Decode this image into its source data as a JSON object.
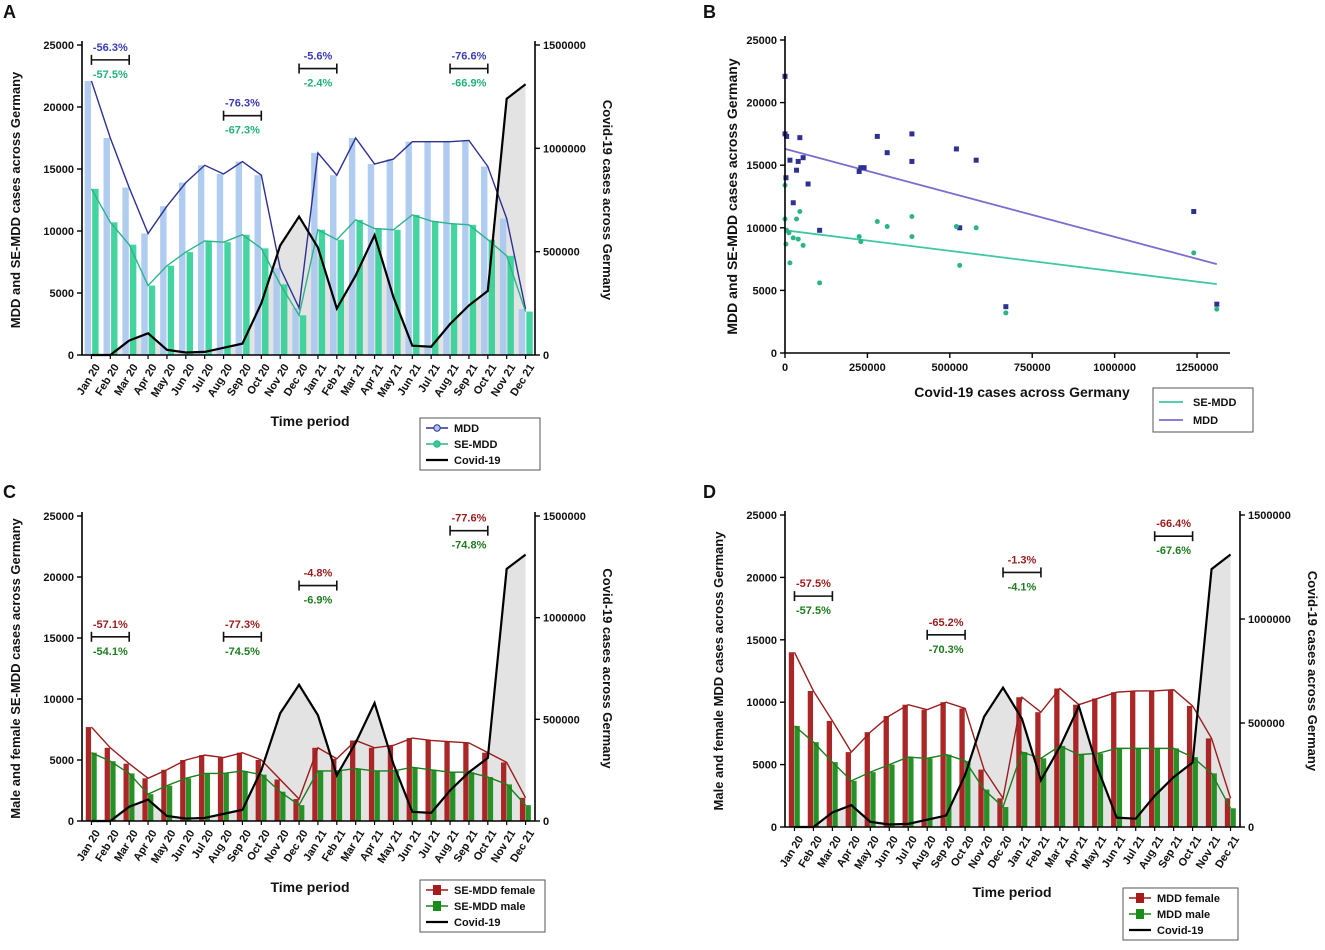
{
  "months": [
    "Jan 20",
    "Feb 20",
    "Mar 20",
    "Apr 20",
    "May 20",
    "Jun 20",
    "Jul 20",
    "Aug 20",
    "Sep 20",
    "Oct 20",
    "Nov 20",
    "Dec 20",
    "Jan 21",
    "Feb 21",
    "Mar 21",
    "Apr 21",
    "May 21",
    "Jun 21",
    "Jul 21",
    "Aug 21",
    "Sep 21",
    "Oct 21",
    "Nov 21",
    "Dec 21"
  ],
  "chart_data": [
    {
      "id": "A",
      "letter": "A",
      "type": "bar+line",
      "ylabel": "MDD and SE-MDD cases across Germany",
      "y2label": "Covid-19 cases across Germany",
      "xlabel": "Time period",
      "ylim": [
        0,
        25000
      ],
      "y2lim": [
        0,
        1500000
      ],
      "yticks": [
        "0",
        "5000",
        "10000",
        "15000",
        "20000",
        "25000"
      ],
      "y2ticks": [
        "0",
        "500000",
        "1000000",
        "1500000"
      ],
      "series": [
        {
          "name": "MDD",
          "color": "#2e3192",
          "bar": "#a9c7ef",
          "values": [
            22100,
            17500,
            13500,
            9800,
            12000,
            13900,
            15300,
            14600,
            15600,
            14500,
            7000,
            3800,
            16300,
            14500,
            17500,
            15400,
            15800,
            17200,
            17200,
            17200,
            17300,
            15200,
            11000,
            3700
          ]
        },
        {
          "name": "SE-MDD",
          "color": "#2bb48a",
          "bar": "#2fcf96",
          "values": [
            13400,
            10700,
            8900,
            5600,
            7200,
            8300,
            9200,
            9100,
            9700,
            8600,
            5700,
            3200,
            10100,
            9300,
            10900,
            10200,
            10100,
            11300,
            10800,
            10600,
            10500,
            9300,
            8000,
            3500
          ]
        }
      ],
      "covid": [
        0,
        0,
        70000,
        105000,
        25000,
        12000,
        15000,
        35000,
        55000,
        250000,
        530000,
        670000,
        520000,
        225000,
        385000,
        580000,
        280000,
        45000,
        40000,
        150000,
        240000,
        310000,
        1240000,
        1310000
      ],
      "brackets": [
        {
          "from": 0,
          "to": 2,
          "level": 23800,
          "top": "-56.3%",
          "bottom": "-57.5%"
        },
        {
          "from": 7,
          "to": 9,
          "level": 19300,
          "top": "-76.3%",
          "bottom": "-67.3%"
        },
        {
          "from": 11,
          "to": 13,
          "level": 23100,
          "top": "-5.6%",
          "bottom": "-2.4%"
        },
        {
          "from": 19,
          "to": 21,
          "level": 23100,
          "top": "-76.6%",
          "bottom": "-66.9%"
        }
      ],
      "legend": [
        "MDD",
        "SE-MDD",
        "Covid-19"
      ]
    },
    {
      "id": "B",
      "letter": "B",
      "type": "scatter",
      "ylabel": "MDD and SE-MDD cases across Germany",
      "xlabel": "Covid-19 cases across Germany",
      "xlim": [
        0,
        1350000
      ],
      "ylim": [
        0,
        25000
      ],
      "xticks": [
        0,
        250000,
        500000,
        750000,
        1000000,
        1250000
      ],
      "xtick_labels": [
        "0",
        "250000",
        "500000",
        "750000",
        "1000000",
        "1250000"
      ],
      "yticks": [
        "0",
        "5000",
        "10000",
        "15000",
        "20000",
        "25000"
      ],
      "series": [
        {
          "name": "MDD",
          "color": "#2e3192",
          "line": "#7a6fcf",
          "x": [
            0,
            0,
            3000,
            5000,
            15000,
            25000,
            35000,
            40000,
            45000,
            55000,
            70000,
            105000,
            225000,
            230000,
            240000,
            280000,
            310000,
            385000,
            385000,
            520000,
            530000,
            580000,
            670000,
            1240000,
            1310000
          ],
          "y": [
            22100,
            17500,
            14000,
            17300,
            15400,
            12000,
            14600,
            15300,
            17200,
            15600,
            13500,
            9800,
            14500,
            14800,
            14800,
            17300,
            16000,
            17500,
            15300,
            16300,
            10000,
            15400,
            3700,
            11300,
            3900
          ],
          "trend": [
            [
              0,
              16300
            ],
            [
              1310000,
              7100
            ]
          ]
        },
        {
          "name": "SE-MDD",
          "color": "#2bb48a",
          "line": "#3ec9a0",
          "x": [
            0,
            0,
            3000,
            5000,
            12000,
            15000,
            25000,
            35000,
            40000,
            45000,
            55000,
            105000,
            225000,
            230000,
            280000,
            310000,
            385000,
            385000,
            520000,
            530000,
            580000,
            670000,
            1240000,
            1310000
          ],
          "y": [
            13400,
            10700,
            8700,
            9800,
            9600,
            7200,
            9200,
            10700,
            9100,
            11300,
            8600,
            5600,
            9300,
            8900,
            10500,
            10100,
            10900,
            9300,
            10100,
            7000,
            10000,
            3200,
            8000,
            3500
          ],
          "trend": [
            [
              0,
              9800
            ],
            [
              1310000,
              5500
            ]
          ]
        }
      ],
      "legend": [
        "SE-MDD",
        "MDD"
      ]
    },
    {
      "id": "C",
      "letter": "C",
      "type": "bar+line",
      "ylabel": "Male and female SE-MDD cases across Germany",
      "y2label": "Covid-19 cases across Germany",
      "xlabel": "Time period",
      "ylim": [
        0,
        25000
      ],
      "y2lim": [
        0,
        1500000
      ],
      "yticks": [
        "0",
        "5000",
        "10000",
        "15000",
        "20000",
        "25000"
      ],
      "y2ticks": [
        "0",
        "500000",
        "1000000",
        "1500000"
      ],
      "series": [
        {
          "name": "SE-MDD female",
          "color": "#9b1c1c",
          "bar": "#a61b1b",
          "values": [
            7700,
            6000,
            4700,
            3500,
            4200,
            5000,
            5400,
            5200,
            5600,
            5000,
            3400,
            1800,
            6000,
            5100,
            6600,
            6000,
            6200,
            6800,
            6600,
            6500,
            6400,
            5600,
            4800,
            1900
          ]
        },
        {
          "name": "SE-MDD male",
          "color": "#1e7d1e",
          "bar": "#1a8c1a",
          "values": [
            5600,
            4900,
            3900,
            2200,
            2900,
            3500,
            3900,
            3900,
            4100,
            3800,
            2400,
            1300,
            4100,
            4100,
            4300,
            4100,
            4100,
            4400,
            4200,
            4000,
            4000,
            3600,
            3000,
            1300
          ]
        }
      ],
      "covid": [
        0,
        0,
        70000,
        105000,
        25000,
        12000,
        15000,
        35000,
        55000,
        250000,
        530000,
        670000,
        520000,
        225000,
        385000,
        580000,
        280000,
        45000,
        40000,
        150000,
        240000,
        310000,
        1240000,
        1310000
      ],
      "brackets": [
        {
          "from": 0,
          "to": 2,
          "level": 15100,
          "top": "-57.1%",
          "bottom": "-54.1%"
        },
        {
          "from": 7,
          "to": 9,
          "level": 15100,
          "top": "-77.3%",
          "bottom": "-74.5%"
        },
        {
          "from": 11,
          "to": 13,
          "level": 19300,
          "top": "-4.8%",
          "bottom": "-6.9%"
        },
        {
          "from": 19,
          "to": 21,
          "level": 23800,
          "top": "-77.6%",
          "bottom": "-74.8%"
        }
      ],
      "legend": [
        "SE-MDD female",
        "SE-MDD male",
        "Covid-19"
      ]
    },
    {
      "id": "D",
      "letter": "D",
      "type": "bar+line",
      "ylabel": "Male and female MDD cases across Germany",
      "y2label": "Covid-19 cases across Germany",
      "xlabel": "Time period",
      "ylim": [
        0,
        25000
      ],
      "y2lim": [
        0,
        1500000
      ],
      "yticks": [
        "0",
        "5000",
        "10000",
        "15000",
        "20000",
        "25000"
      ],
      "y2ticks": [
        "0",
        "500000",
        "1000000",
        "1500000"
      ],
      "series": [
        {
          "name": "MDD female",
          "color": "#9b1c1c",
          "bar": "#a61b1b",
          "values": [
            14000,
            10900,
            8500,
            6000,
            7600,
            8900,
            9800,
            9400,
            10000,
            9500,
            4600,
            2300,
            10400,
            9200,
            11100,
            9800,
            10300,
            10800,
            10900,
            10900,
            11000,
            9700,
            7100,
            2300
          ]
        },
        {
          "name": "MDD male",
          "color": "#1e7d1e",
          "bar": "#1a8c1a",
          "values": [
            8100,
            6800,
            5200,
            3700,
            4400,
            5000,
            5600,
            5500,
            5800,
            5300,
            3000,
            1600,
            6000,
            5500,
            6500,
            5800,
            5900,
            6300,
            6300,
            6300,
            6300,
            5600,
            4300,
            1500
          ]
        }
      ],
      "covid": [
        0,
        0,
        70000,
        105000,
        25000,
        12000,
        15000,
        35000,
        55000,
        250000,
        530000,
        670000,
        520000,
        225000,
        385000,
        580000,
        280000,
        45000,
        40000,
        150000,
        240000,
        310000,
        1240000,
        1310000
      ],
      "brackets": [
        {
          "from": 0,
          "to": 2,
          "level": 18500,
          "top": "-57.5%",
          "bottom": "-57.5%"
        },
        {
          "from": 7,
          "to": 9,
          "level": 15400,
          "top": "-65.2%",
          "bottom": "-70.3%"
        },
        {
          "from": 11,
          "to": 13,
          "level": 20400,
          "top": "-1.3%",
          "bottom": "-4.1%"
        },
        {
          "from": 19,
          "to": 21,
          "level": 23300,
          "top": "-66.4%",
          "bottom": "-67.6%"
        }
      ],
      "legend": [
        "MDD female",
        "MDD male",
        "Covid-19"
      ]
    }
  ],
  "covid_color": "#000000",
  "covid_fill": "#e3e3e3"
}
